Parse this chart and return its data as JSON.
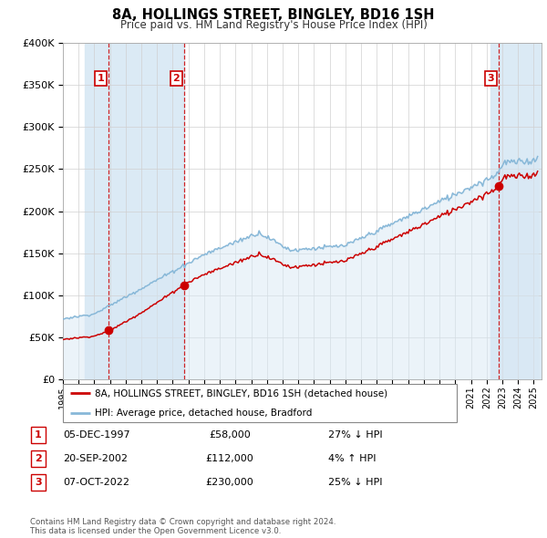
{
  "title": "8A, HOLLINGS STREET, BINGLEY, BD16 1SH",
  "subtitle": "Price paid vs. HM Land Registry's House Price Index (HPI)",
  "background_color": "#ffffff",
  "plot_bg_color": "#ffffff",
  "grid_color": "#d0d0d0",
  "red_line_color": "#cc0000",
  "blue_line_color": "#88b8d8",
  "blue_fill_color": "#d8e8f4",
  "purchases": [
    {
      "num": 1,
      "date_label": "05-DEC-1997",
      "price": 58000,
      "hpi_diff": "27% ↓ HPI",
      "x_year": 1997.92
    },
    {
      "num": 2,
      "date_label": "20-SEP-2002",
      "price": 112000,
      "hpi_diff": "4% ↑ HPI",
      "x_year": 2002.72
    },
    {
      "num": 3,
      "date_label": "07-OCT-2022",
      "price": 230000,
      "hpi_diff": "25% ↓ HPI",
      "x_year": 2022.77
    }
  ],
  "legend_label_red": "8A, HOLLINGS STREET, BINGLEY, BD16 1SH (detached house)",
  "legend_label_blue": "HPI: Average price, detached house, Bradford",
  "footer": "Contains HM Land Registry data © Crown copyright and database right 2024.\nThis data is licensed under the Open Government Licence v3.0.",
  "table_rows": [
    [
      1,
      "05-DEC-1997",
      "£58,000",
      "27% ↓ HPI"
    ],
    [
      2,
      "20-SEP-2002",
      "£112,000",
      "4% ↑ HPI"
    ],
    [
      3,
      "07-OCT-2022",
      "£230,000",
      "25% ↓ HPI"
    ]
  ],
  "ylim": [
    0,
    400000
  ],
  "yticks": [
    0,
    50000,
    100000,
    150000,
    200000,
    250000,
    300000,
    350000,
    400000
  ],
  "xlim": [
    1995.0,
    2025.5
  ],
  "xticks": [
    1995,
    1996,
    1997,
    1998,
    1999,
    2000,
    2001,
    2002,
    2003,
    2004,
    2005,
    2006,
    2007,
    2008,
    2009,
    2010,
    2011,
    2012,
    2013,
    2014,
    2015,
    2016,
    2017,
    2018,
    2019,
    2020,
    2021,
    2022,
    2023,
    2024,
    2025
  ]
}
